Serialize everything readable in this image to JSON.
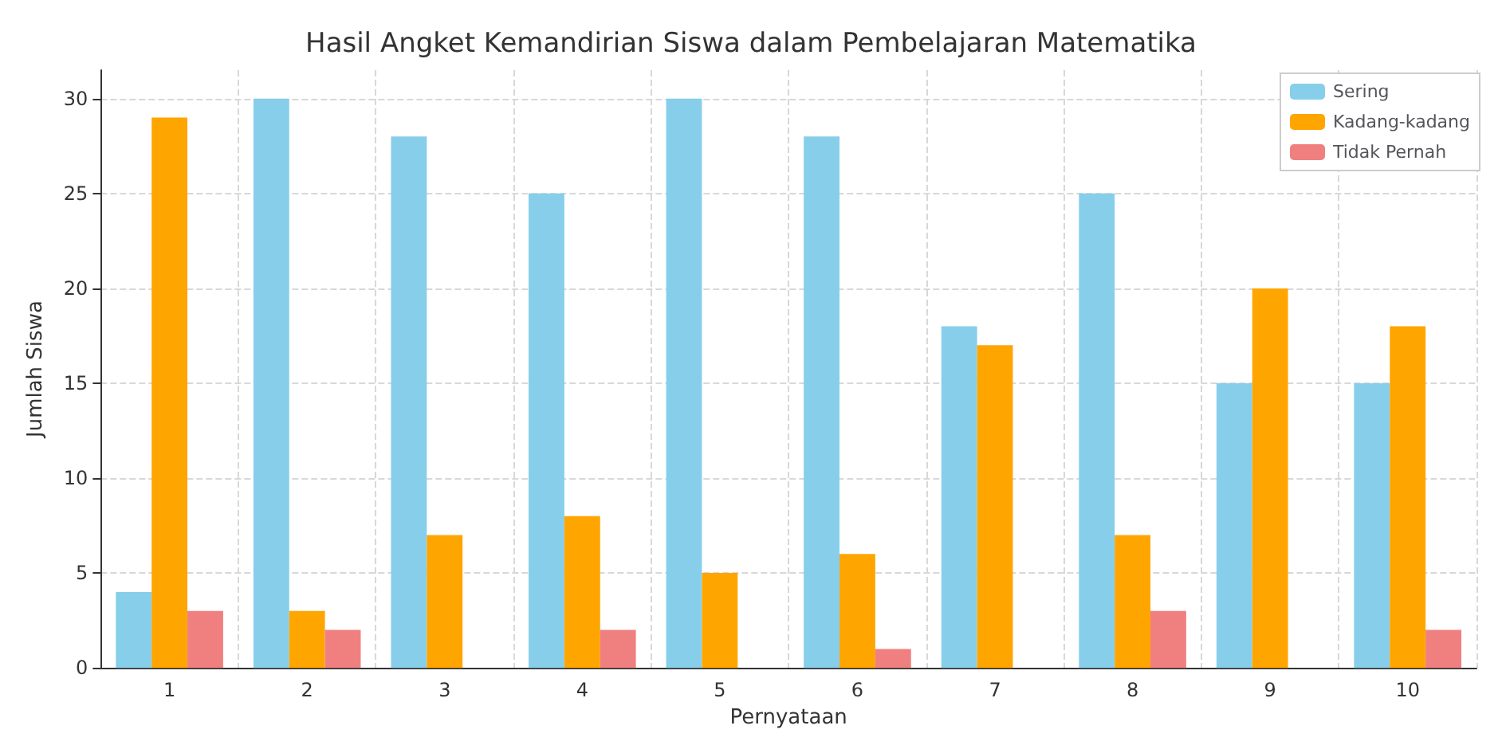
{
  "chart_data": {
    "type": "bar",
    "title": "Hasil Angket Kemandirian Siswa dalam Pembelajaran Matematika",
    "xlabel": "Pernyataan",
    "ylabel": "Jumlah Siswa",
    "categories": [
      "1",
      "2",
      "3",
      "4",
      "5",
      "6",
      "7",
      "8",
      "9",
      "10"
    ],
    "series": [
      {
        "name": "Sering",
        "color": "#87ceeb",
        "values": [
          4,
          30,
          28,
          25,
          30,
          28,
          18,
          25,
          15,
          15
        ]
      },
      {
        "name": "Kadang-kadang",
        "color": "#ffa500",
        "values": [
          29,
          3,
          7,
          8,
          5,
          6,
          17,
          7,
          20,
          18
        ]
      },
      {
        "name": "Tidak Pernah",
        "color": "#f08080",
        "values": [
          3,
          2,
          0,
          2,
          0,
          1,
          0,
          3,
          0,
          2
        ]
      }
    ],
    "ylim": [
      0,
      31.5
    ],
    "yticks": [
      0,
      5,
      10,
      15,
      20,
      25,
      30
    ],
    "grid": true,
    "legend": "top right"
  }
}
